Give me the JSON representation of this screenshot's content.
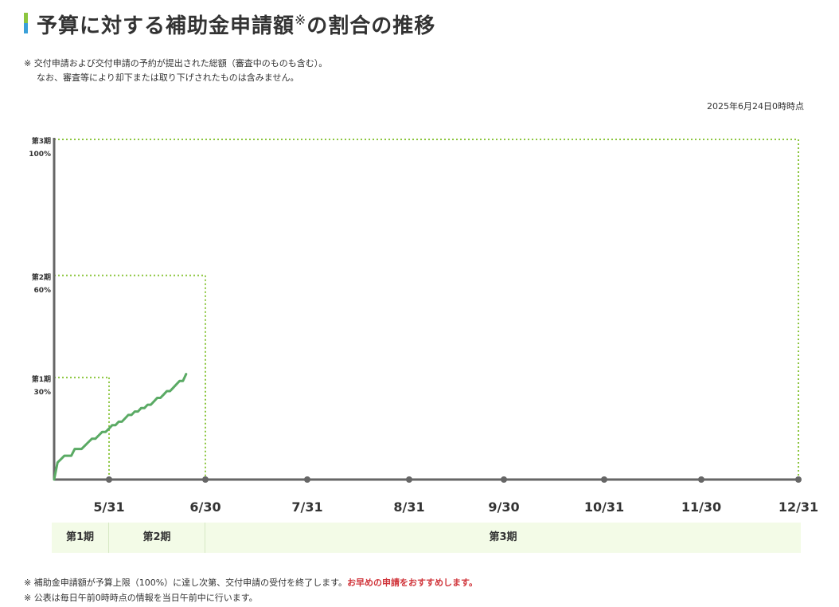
{
  "header": {
    "title": "予算に対する補助金申請額",
    "title_mark": "※",
    "title_suffix": "の割合の推移"
  },
  "notes_top": [
    "※ 交付申請および交付申請の予約が提出された総額（審査中のものも含む）。",
    "なお、審査等により却下または取り下げされたものは含みません。"
  ],
  "timestamp": "2025年6月24日0時時点",
  "chart_data": {
    "type": "line",
    "title": "",
    "xlabel": "",
    "ylabel": "",
    "ylim": [
      0,
      100
    ],
    "x_ticks": [
      "5/31",
      "6/30",
      "7/31",
      "8/31",
      "9/30",
      "10/31",
      "11/30",
      "12/31"
    ],
    "x_start": "5/15",
    "thresholds": [
      {
        "phase": "第1期",
        "value": 30,
        "label": "30%",
        "end_date": "5/31"
      },
      {
        "phase": "第2期",
        "value": 60,
        "label": "60%",
        "end_date": "6/30"
      },
      {
        "phase": "第3期",
        "value": 100,
        "label": "100%",
        "end_date": "12/31"
      }
    ],
    "series": [
      {
        "x": [
          "5/15",
          "5/16",
          "5/17",
          "5/18",
          "5/19",
          "5/20",
          "5/21",
          "5/22",
          "5/23",
          "5/24",
          "5/25",
          "5/26",
          "5/27",
          "5/28",
          "5/29",
          "5/30",
          "5/31",
          "6/1",
          "6/2",
          "6/3",
          "6/4",
          "6/5",
          "6/6",
          "6/7",
          "6/8",
          "6/9",
          "6/10",
          "6/11",
          "6/12",
          "6/13",
          "6/14",
          "6/15",
          "6/16",
          "6/17",
          "6/18",
          "6/19",
          "6/20",
          "6/21",
          "6/22",
          "6/23",
          "6/24"
        ],
        "values": [
          0,
          5,
          6,
          7,
          7,
          7,
          9,
          9,
          9,
          10,
          11,
          12,
          12,
          13,
          14,
          14,
          15,
          16,
          16,
          17,
          17,
          18,
          19,
          19,
          20,
          20,
          21,
          21,
          22,
          22,
          23,
          24,
          24,
          25,
          26,
          26,
          27,
          28,
          29,
          29,
          31
        ],
        "color": "#5aaa64"
      }
    ],
    "threshold_color": "#8cc63f",
    "axis_color": "#666666"
  },
  "phase_bar": {
    "cells": [
      {
        "label": "第1期"
      },
      {
        "label": "第2期"
      },
      {
        "label": "第3期"
      }
    ]
  },
  "notes_bottom": {
    "line1_prefix": "※ 補助金申請額が予算上限（100%）に達し次第、交付申請の受付を終了します。",
    "line1_emph": "お早めの申請をおすすめします。",
    "line2": "※ 公表は毎日午前0時時点の情報を当日午前中に行います。"
  }
}
